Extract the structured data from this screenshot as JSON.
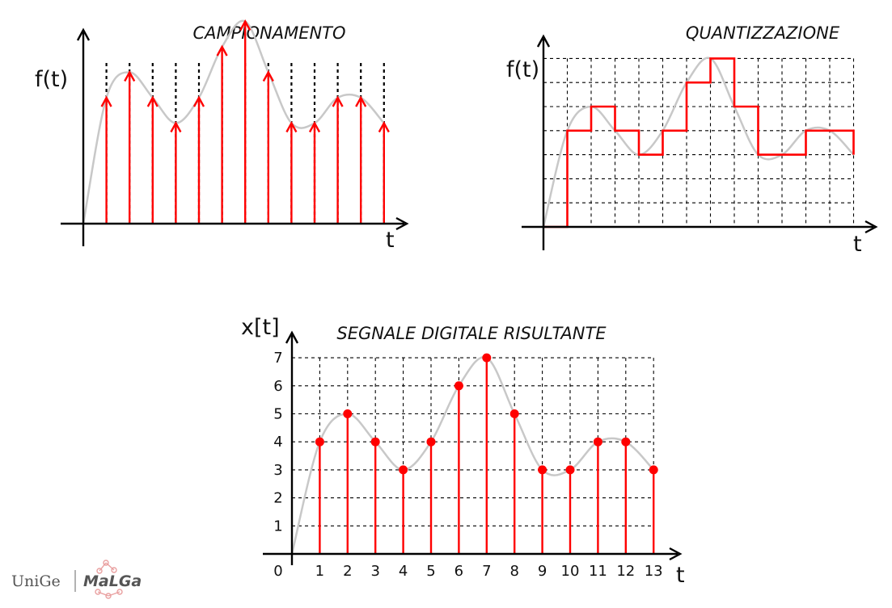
{
  "panels": {
    "sampling": {
      "title": "CAMPIONAMENTO",
      "y_label": "f(t)",
      "x_label": "t"
    },
    "quantization": {
      "title": "QUANTIZZAZIONE",
      "y_label": "f(t)",
      "x_label": "t"
    },
    "digital": {
      "title": "SEGNALE DIGITALE RISULTANTE",
      "y_label": "x[t]",
      "x_label": "t",
      "origin_label": "0",
      "x_ticks": [
        "1",
        "2",
        "3",
        "4",
        "5",
        "6",
        "7",
        "8",
        "9",
        "10",
        "11",
        "12",
        "13"
      ],
      "y_ticks": [
        "1",
        "2",
        "3",
        "4",
        "5",
        "6",
        "7"
      ]
    }
  },
  "chart_data": {
    "type": "scatter",
    "x": [
      1,
      2,
      3,
      4,
      5,
      6,
      7,
      8,
      9,
      10,
      11,
      12,
      13
    ],
    "values": [
      4,
      5,
      4,
      3,
      4,
      6,
      7,
      5,
      3,
      3,
      4,
      4,
      3
    ],
    "xlim": [
      0,
      13
    ],
    "ylim": [
      0,
      7
    ],
    "grid": true
  },
  "colors": {
    "signal": "#ff0000",
    "curve": "#c8c8c8",
    "axis": "#000000",
    "grid": "#000000"
  },
  "logo": {
    "left": "UniGe",
    "right": "MaLGa"
  }
}
